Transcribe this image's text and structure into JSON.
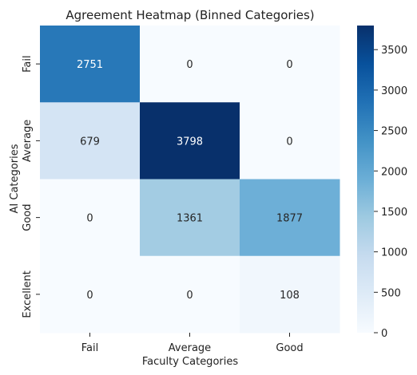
{
  "chart_data": {
    "type": "heatmap",
    "title": "Agreement Heatmap (Binned Categories)",
    "xlabel": "Faculty Categories",
    "ylabel": "AI Categories",
    "x_categories": [
      "Fail",
      "Average",
      "Good"
    ],
    "y_categories": [
      "Fail",
      "Average",
      "Good",
      "Excellent"
    ],
    "values": [
      [
        2751,
        0,
        0
      ],
      [
        679,
        3798,
        0
      ],
      [
        0,
        1361,
        1877
      ],
      [
        0,
        0,
        108
      ]
    ],
    "colormap": "Blues",
    "colors": [
      "#f7fbff",
      "#deebf7",
      "#c6dbef",
      "#9ecae1",
      "#6baed6",
      "#4292c6",
      "#2171b5",
      "#08519c",
      "#08306b"
    ],
    "colorbar": {
      "ticks": [
        "0",
        "500",
        "1000",
        "1500",
        "2000",
        "2500",
        "3000",
        "3500"
      ]
    }
  }
}
